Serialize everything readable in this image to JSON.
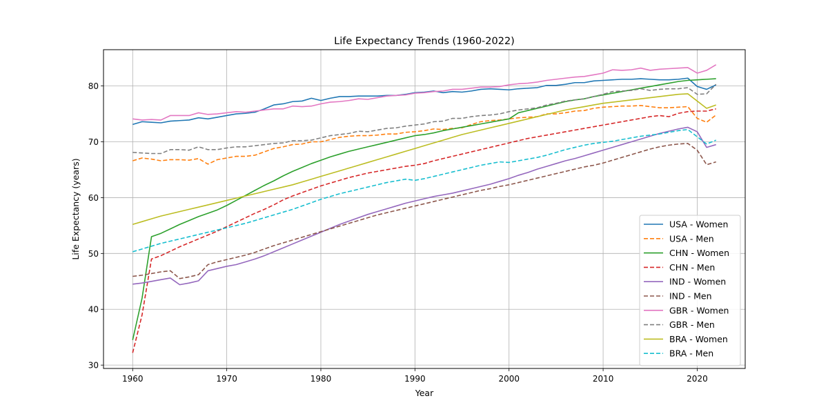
{
  "chart_data": {
    "type": "line",
    "title": "Life Expectancy Trends (1960-2022)",
    "xlabel": "Year",
    "ylabel": "Life Expectancy (years)",
    "xlim": [
      1957.45,
      1965.55
    ],
    "ylim": [
      29.4,
      86.5
    ],
    "xticks": [
      1960,
      1970,
      1980,
      1990,
      2000,
      2010,
      2020
    ],
    "yticks": [
      30,
      40,
      50,
      60,
      70,
      80
    ],
    "grid": true,
    "legend_position": "lower-right",
    "x": [
      1960,
      1961,
      1962,
      1963,
      1964,
      1965,
      1966,
      1967,
      1968,
      1969,
      1970,
      1971,
      1972,
      1973,
      1974,
      1975,
      1976,
      1977,
      1978,
      1979,
      1980,
      1981,
      1982,
      1983,
      1984,
      1985,
      1986,
      1987,
      1988,
      1989,
      1990,
      1991,
      1992,
      1993,
      1994,
      1995,
      1996,
      1997,
      1998,
      1999,
      2000,
      2001,
      2002,
      2003,
      2004,
      2005,
      2006,
      2007,
      2008,
      2009,
      2010,
      2011,
      2012,
      2013,
      2014,
      2015,
      2016,
      2017,
      2018,
      2019,
      2020,
      2021,
      2022
    ],
    "series": [
      {
        "name": "USA - Women",
        "color": "#1f77b4",
        "dashed": false,
        "values": [
          73.1,
          73.6,
          73.5,
          73.4,
          73.7,
          73.8,
          73.9,
          74.3,
          74.1,
          74.4,
          74.7,
          75.0,
          75.1,
          75.3,
          75.9,
          76.6,
          76.8,
          77.2,
          77.3,
          77.8,
          77.4,
          77.8,
          78.1,
          78.1,
          78.2,
          78.2,
          78.2,
          78.3,
          78.3,
          78.5,
          78.8,
          78.9,
          79.1,
          78.8,
          79.0,
          78.9,
          79.1,
          79.4,
          79.5,
          79.4,
          79.3,
          79.5,
          79.6,
          79.7,
          80.1,
          80.1,
          80.3,
          80.6,
          80.6,
          80.9,
          81.0,
          81.1,
          81.2,
          81.2,
          81.3,
          81.2,
          81.1,
          81.1,
          81.2,
          81.4,
          79.9,
          79.4,
          80.2
        ]
      },
      {
        "name": "USA - Men",
        "color": "#ff7f0e",
        "dashed": true,
        "values": [
          66.6,
          67.1,
          66.9,
          66.6,
          66.8,
          66.8,
          66.7,
          67.0,
          66.0,
          66.8,
          67.1,
          67.4,
          67.4,
          67.6,
          68.2,
          68.8,
          69.1,
          69.5,
          69.6,
          70.0,
          70.0,
          70.4,
          70.8,
          71.0,
          71.1,
          71.1,
          71.2,
          71.4,
          71.4,
          71.7,
          71.8,
          72.0,
          72.3,
          72.2,
          72.4,
          72.5,
          73.1,
          73.6,
          73.8,
          73.9,
          74.1,
          74.3,
          74.4,
          74.5,
          75.0,
          75.0,
          75.2,
          75.5,
          75.6,
          76.0,
          76.2,
          76.3,
          76.4,
          76.4,
          76.5,
          76.3,
          76.1,
          76.1,
          76.2,
          76.3,
          74.2,
          73.5,
          74.8
        ]
      },
      {
        "name": "CHN - Women",
        "color": "#2ca02c",
        "dashed": false,
        "values": [
          34.5,
          42.0,
          53.0,
          53.6,
          54.4,
          55.2,
          55.9,
          56.6,
          57.2,
          57.8,
          58.6,
          59.5,
          60.4,
          61.3,
          62.2,
          63.0,
          63.9,
          64.7,
          65.4,
          66.1,
          66.7,
          67.3,
          67.8,
          68.3,
          68.7,
          69.1,
          69.5,
          69.9,
          70.3,
          70.7,
          71.1,
          71.3,
          71.6,
          72.0,
          72.3,
          72.6,
          72.9,
          73.2,
          73.5,
          73.8,
          74.1,
          75.2,
          75.6,
          76.0,
          76.4,
          76.8,
          77.2,
          77.5,
          77.7,
          78.1,
          78.4,
          78.7,
          79.0,
          79.3,
          79.6,
          79.9,
          80.2,
          80.5,
          80.8,
          81.0,
          81.1,
          81.2,
          81.3
        ]
      },
      {
        "name": "CHN - Men",
        "color": "#d62728",
        "dashed": true,
        "values": [
          32.2,
          39.0,
          49.0,
          49.6,
          50.4,
          51.2,
          51.9,
          52.6,
          53.3,
          54.0,
          54.8,
          55.6,
          56.4,
          57.2,
          57.9,
          58.7,
          59.6,
          60.3,
          60.9,
          61.5,
          62.1,
          62.6,
          63.1,
          63.6,
          64.0,
          64.4,
          64.7,
          65.0,
          65.3,
          65.6,
          65.8,
          66.1,
          66.6,
          67.0,
          67.4,
          67.8,
          68.2,
          68.6,
          69.0,
          69.4,
          69.8,
          70.2,
          70.6,
          70.9,
          71.2,
          71.5,
          71.8,
          72.1,
          72.4,
          72.7,
          73.0,
          73.3,
          73.6,
          73.9,
          74.2,
          74.5,
          74.7,
          74.5,
          75.1,
          75.4,
          75.5,
          75.5,
          75.9
        ]
      },
      {
        "name": "IND - Women",
        "color": "#9467bd",
        "dashed": false,
        "values": [
          44.5,
          44.7,
          45.0,
          45.3,
          45.6,
          44.4,
          44.7,
          45.1,
          46.9,
          47.3,
          47.7,
          48.0,
          48.5,
          49.0,
          49.6,
          50.3,
          51.0,
          51.7,
          52.4,
          53.1,
          53.8,
          54.5,
          55.2,
          55.8,
          56.4,
          57.0,
          57.5,
          58.0,
          58.5,
          59.0,
          59.4,
          59.8,
          60.2,
          60.5,
          60.8,
          61.2,
          61.6,
          62.0,
          62.4,
          62.9,
          63.4,
          64.0,
          64.5,
          65.1,
          65.6,
          66.1,
          66.6,
          67.0,
          67.5,
          68.0,
          68.5,
          69.0,
          69.5,
          70.0,
          70.5,
          71.0,
          71.5,
          71.9,
          72.3,
          72.6,
          71.8,
          69.0,
          69.5
        ]
      },
      {
        "name": "IND - Men",
        "color": "#8c564b",
        "dashed": true,
        "values": [
          45.9,
          46.1,
          46.4,
          46.7,
          46.9,
          45.5,
          45.8,
          46.2,
          48.0,
          48.5,
          48.9,
          49.3,
          49.7,
          50.2,
          50.8,
          51.4,
          51.9,
          52.4,
          52.9,
          53.4,
          53.9,
          54.4,
          54.9,
          55.4,
          55.9,
          56.4,
          56.9,
          57.3,
          57.7,
          58.1,
          58.5,
          58.9,
          59.3,
          59.7,
          60.1,
          60.5,
          60.9,
          61.3,
          61.6,
          62.0,
          62.3,
          62.7,
          63.1,
          63.5,
          63.9,
          64.3,
          64.7,
          65.1,
          65.5,
          65.8,
          66.2,
          66.7,
          67.2,
          67.7,
          68.2,
          68.7,
          69.1,
          69.4,
          69.6,
          69.7,
          68.5,
          65.9,
          66.4
        ]
      },
      {
        "name": "GBR - Women",
        "color": "#e377c2",
        "dashed": false,
        "values": [
          74.1,
          73.9,
          74.0,
          73.9,
          74.7,
          74.7,
          74.7,
          75.2,
          74.9,
          75.0,
          75.2,
          75.4,
          75.3,
          75.5,
          75.7,
          75.9,
          75.9,
          76.4,
          76.3,
          76.4,
          76.8,
          77.1,
          77.2,
          77.4,
          77.7,
          77.6,
          77.9,
          78.2,
          78.3,
          78.4,
          78.7,
          78.8,
          79.0,
          79.1,
          79.4,
          79.4,
          79.6,
          79.8,
          79.8,
          79.9,
          80.2,
          80.4,
          80.5,
          80.7,
          81.0,
          81.2,
          81.4,
          81.6,
          81.7,
          82.0,
          82.3,
          82.9,
          82.8,
          82.9,
          83.2,
          82.8,
          83.0,
          83.1,
          83.2,
          83.3,
          82.3,
          82.8,
          83.8
        ]
      },
      {
        "name": "GBR - Men",
        "color": "#7f7f7f",
        "dashed": true,
        "values": [
          68.1,
          68.0,
          67.9,
          67.9,
          68.6,
          68.6,
          68.5,
          69.1,
          68.6,
          68.6,
          68.9,
          69.1,
          69.1,
          69.3,
          69.5,
          69.7,
          69.8,
          70.2,
          70.2,
          70.3,
          70.7,
          71.1,
          71.3,
          71.5,
          71.9,
          71.8,
          72.1,
          72.4,
          72.5,
          72.8,
          73.0,
          73.2,
          73.6,
          73.7,
          74.2,
          74.2,
          74.5,
          74.7,
          74.8,
          75.0,
          75.4,
          75.7,
          75.9,
          76.1,
          76.6,
          76.9,
          77.3,
          77.5,
          77.7,
          78.1,
          78.5,
          79.0,
          79.1,
          79.2,
          79.5,
          79.2,
          79.4,
          79.5,
          79.5,
          79.7,
          78.5,
          78.6,
          80.3
        ]
      },
      {
        "name": "BRA - Women",
        "color": "#bcbd22",
        "dashed": false,
        "values": [
          55.2,
          55.7,
          56.2,
          56.7,
          57.1,
          57.5,
          57.9,
          58.3,
          58.7,
          59.1,
          59.5,
          59.9,
          60.3,
          60.7,
          61.1,
          61.5,
          61.9,
          62.3,
          62.8,
          63.3,
          63.8,
          64.3,
          64.8,
          65.3,
          65.8,
          66.3,
          66.8,
          67.3,
          67.8,
          68.3,
          68.8,
          69.3,
          69.8,
          70.3,
          70.8,
          71.3,
          71.7,
          72.1,
          72.5,
          72.9,
          73.3,
          73.7,
          74.1,
          74.5,
          74.9,
          75.3,
          75.7,
          76.0,
          76.3,
          76.6,
          76.9,
          77.1,
          77.3,
          77.5,
          77.7,
          77.9,
          78.1,
          78.3,
          78.5,
          78.6,
          77.3,
          76.0,
          76.6
        ]
      },
      {
        "name": "BRA - Men",
        "color": "#17becf",
        "dashed": true,
        "values": [
          50.3,
          50.8,
          51.3,
          51.8,
          52.2,
          52.6,
          53.0,
          53.4,
          53.8,
          54.2,
          54.6,
          55.0,
          55.4,
          55.9,
          56.4,
          56.9,
          57.4,
          57.9,
          58.5,
          59.1,
          59.7,
          60.2,
          60.7,
          61.1,
          61.5,
          61.9,
          62.3,
          62.7,
          63.0,
          63.3,
          63.1,
          63.4,
          63.8,
          64.2,
          64.6,
          65.0,
          65.4,
          65.8,
          66.1,
          66.4,
          66.3,
          66.6,
          66.9,
          67.2,
          67.6,
          68.1,
          68.6,
          69.0,
          69.4,
          69.7,
          69.9,
          70.1,
          70.4,
          70.7,
          71.0,
          71.2,
          71.4,
          71.7,
          72.0,
          72.2,
          70.9,
          69.6,
          70.3
        ]
      }
    ]
  }
}
